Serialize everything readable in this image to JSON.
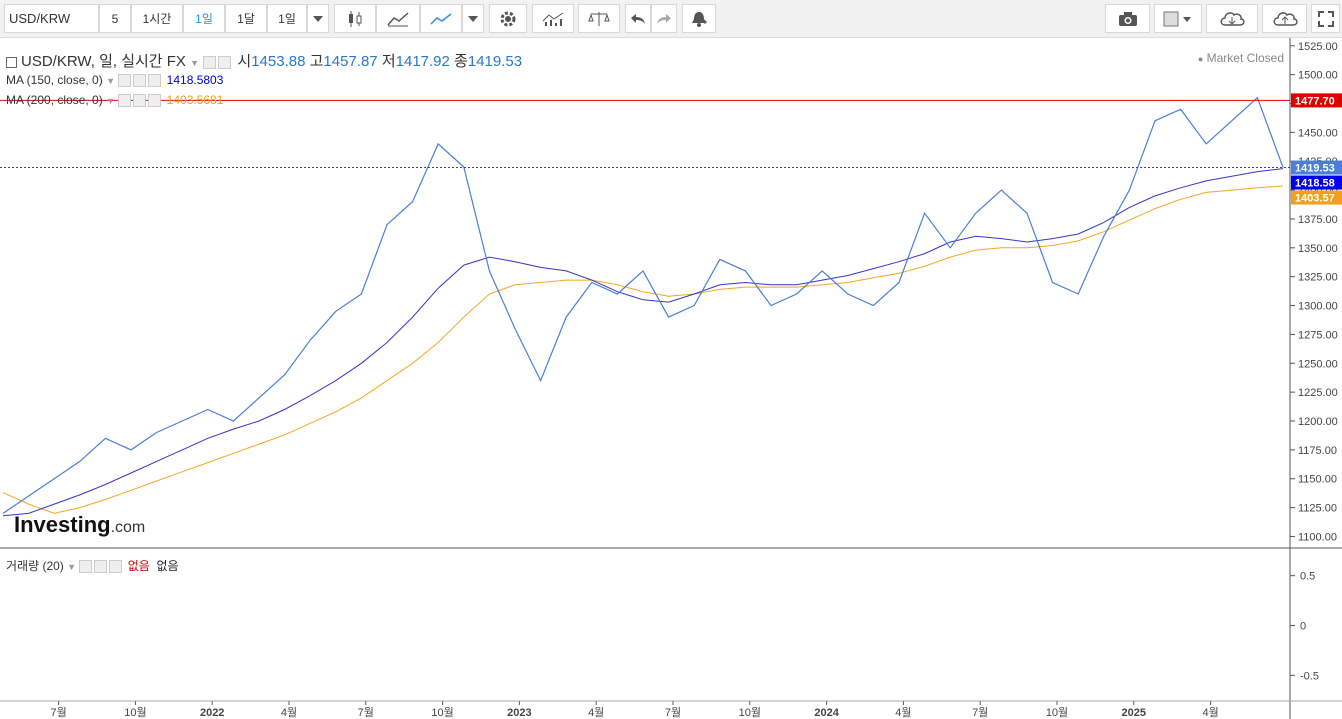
{
  "toolbar": {
    "symbol": "USD/KRW",
    "intervals": [
      "5",
      "1시간",
      "1일",
      "1달",
      "1일"
    ],
    "selected_interval": "1일",
    "icons": [
      "candlestick-icon",
      "area-chart-icon",
      "line-chart-icon",
      "dropdown-icon",
      "settings-icon",
      "indicators-icon",
      "balance-icon",
      "undo-icon",
      "redo-icon",
      "alert-bell-icon",
      "camera-icon",
      "color-square-icon",
      "cloud-download-icon",
      "cloud-upload-icon",
      "fullscreen-icon"
    ]
  },
  "legend": {
    "title": "USD/KRW, 일, 실시간 FX",
    "open_label": "시",
    "open": "1453.88",
    "high_label": "고",
    "high": "1457.87",
    "low_label": "저",
    "low": "1417.92",
    "close_label": "종",
    "close": "1419.53",
    "ma150_label": "MA (150, close, 0)",
    "ma150_value": "1418.5803",
    "ma200_label": "MA (200, close, 0)",
    "ma200_value": "1403.5681",
    "market_status": "Market Closed"
  },
  "volume_panel": {
    "label": "거래량 (20)",
    "value1": "없음",
    "value2": "없음"
  },
  "watermark": {
    "brand": "Investing",
    "suffix": ".com"
  },
  "price_badges": {
    "alert": "1477.70",
    "last": "1419.53",
    "ma150": "1418.58",
    "ma200": "1403.57"
  },
  "colors": {
    "price": "#4a7fd4",
    "ma150": "#3535c8",
    "ma200": "#f5a623",
    "alert": "#e00000",
    "last_badge": "#4a7fd4",
    "ma150_badge": "#0000ee",
    "ma200_badge": "#f0a020"
  },
  "chart_data": {
    "type": "line",
    "y_axis_ticks": [
      "1525.00",
      "1500.00",
      "1475.00",
      "1450.00",
      "1425.00",
      "1400.00",
      "1375.00",
      "1350.00",
      "1325.00",
      "1300.00",
      "1275.00",
      "1250.00",
      "1225.00",
      "1200.00",
      "1175.00",
      "1150.00",
      "1125.00",
      "1100.00"
    ],
    "ylim": [
      1090,
      1530
    ],
    "x_axis_ticks": [
      "7월",
      "10월",
      "2022",
      "4월",
      "7월",
      "10월",
      "2023",
      "4월",
      "7월",
      "10월",
      "2024",
      "4월",
      "7월",
      "10월",
      "2025",
      "4월"
    ],
    "x_tick_index": [
      1,
      4,
      7,
      10,
      13,
      16,
      19,
      22,
      25,
      28,
      31,
      34,
      37,
      40,
      43,
      46
    ],
    "volume_axis_ticks": [
      "0.5",
      "0",
      "-0.5"
    ],
    "series": [
      {
        "name": "USD/KRW",
        "values": [
          1120,
          1135,
          1150,
          1165,
          1185,
          1175,
          1190,
          1200,
          1210,
          1200,
          1220,
          1240,
          1270,
          1295,
          1310,
          1370,
          1390,
          1440,
          1420,
          1330,
          1280,
          1235,
          1290,
          1320,
          1310,
          1330,
          1290,
          1300,
          1340,
          1330,
          1300,
          1310,
          1330,
          1310,
          1300,
          1320,
          1380,
          1350,
          1380,
          1400,
          1380,
          1320,
          1310,
          1360,
          1400,
          1460,
          1470,
          1440,
          1460,
          1480,
          1419.53
        ]
      },
      {
        "name": "MA (150, close, 0)",
        "values": [
          1118,
          1120,
          1128,
          1136,
          1145,
          1155,
          1165,
          1175,
          1185,
          1193,
          1200,
          1210,
          1222,
          1235,
          1250,
          1268,
          1290,
          1315,
          1335,
          1342,
          1338,
          1333,
          1330,
          1322,
          1312,
          1305,
          1303,
          1310,
          1318,
          1320,
          1318,
          1318,
          1322,
          1326,
          1332,
          1338,
          1345,
          1355,
          1360,
          1358,
          1355,
          1358,
          1362,
          1372,
          1385,
          1395,
          1402,
          1408,
          1412,
          1416,
          1418.58
        ]
      },
      {
        "name": "MA (200, close, 0)",
        "values": [
          1138,
          1128,
          1120,
          1125,
          1132,
          1140,
          1148,
          1156,
          1164,
          1172,
          1180,
          1188,
          1198,
          1208,
          1220,
          1235,
          1250,
          1268,
          1290,
          1310,
          1318,
          1320,
          1322,
          1322,
          1318,
          1312,
          1308,
          1310,
          1314,
          1316,
          1316,
          1316,
          1318,
          1320,
          1324,
          1328,
          1334,
          1342,
          1348,
          1350,
          1350,
          1352,
          1356,
          1364,
          1374,
          1384,
          1392,
          1398,
          1400,
          1402,
          1403.57
        ]
      }
    ]
  }
}
